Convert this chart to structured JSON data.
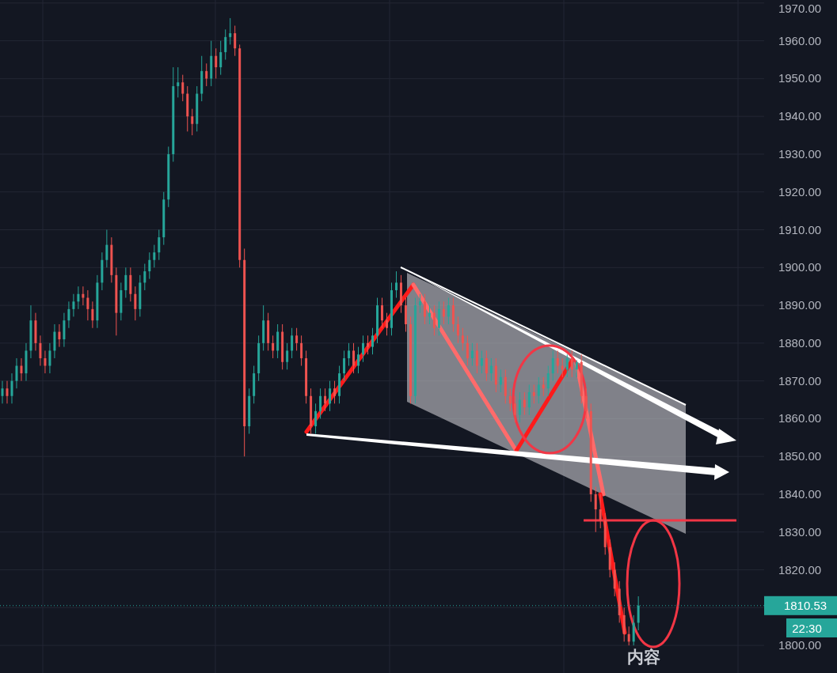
{
  "chart_data": {
    "type": "candlestick",
    "categories": [
      null,
      null,
      null,
      null,
      null,
      null,
      null,
      null,
      null,
      null,
      null,
      null,
      null,
      null,
      null,
      null,
      null,
      null,
      null,
      null,
      null,
      null,
      null,
      null,
      null,
      null,
      null,
      null,
      null,
      null,
      null,
      null,
      null,
      null,
      null,
      null,
      null,
      null,
      null,
      null,
      null,
      null,
      null,
      null,
      null,
      null,
      null,
      null,
      null,
      null,
      null,
      null,
      null,
      null,
      null,
      null,
      null,
      null,
      null,
      null,
      null,
      null,
      null,
      null,
      null,
      null,
      null,
      null,
      null,
      null,
      null,
      null,
      null,
      null,
      null,
      null,
      null,
      null,
      null,
      null,
      null,
      null,
      null,
      null,
      null,
      null,
      null,
      null,
      null,
      null,
      null,
      null,
      null,
      null,
      null,
      null,
      null,
      null,
      null,
      null,
      null,
      null,
      null,
      null,
      null,
      null,
      null,
      null,
      null,
      null,
      null,
      null,
      null,
      null,
      null,
      null,
      null,
      null,
      null,
      null,
      null,
      null,
      null,
      null,
      null,
      null,
      null,
      null,
      null,
      null,
      null,
      null,
      null,
      null,
      null,
      null,
      null,
      null,
      null,
      null,
      null,
      null,
      null,
      null,
      null,
      null,
      null,
      null,
      null,
      null,
      null,
      null,
      null,
      null,
      null,
      null,
      null,
      null,
      null,
      null,
      null
    ],
    "ohlc": [
      [
        1866,
        1870,
        1864,
        1868
      ],
      [
        1868,
        1870,
        1864,
        1866
      ],
      [
        1866,
        1872,
        1864,
        1870
      ],
      [
        1870,
        1876,
        1868,
        1874
      ],
      [
        1874,
        1876,
        1870,
        1872
      ],
      [
        1872,
        1880,
        1870,
        1878
      ],
      [
        1878,
        1890,
        1876,
        1886
      ],
      [
        1886,
        1888,
        1878,
        1880
      ],
      [
        1880,
        1882,
        1874,
        1876
      ],
      [
        1876,
        1878,
        1872,
        1874
      ],
      [
        1874,
        1880,
        1872,
        1878
      ],
      [
        1878,
        1885,
        1876,
        1883
      ],
      [
        1883,
        1885,
        1879,
        1881
      ],
      [
        1881,
        1888,
        1879,
        1886
      ],
      [
        1886,
        1891,
        1884,
        1889
      ],
      [
        1889,
        1893,
        1887,
        1891
      ],
      [
        1891,
        1895,
        1889,
        1893
      ],
      [
        1893,
        1895,
        1890,
        1892
      ],
      [
        1892,
        1894,
        1886,
        1889
      ],
      [
        1889,
        1891,
        1884,
        1886
      ],
      [
        1886,
        1898,
        1884,
        1896
      ],
      [
        1896,
        1904,
        1894,
        1902
      ],
      [
        1902,
        1910,
        1900,
        1906
      ],
      [
        1906,
        1908,
        1896,
        1898
      ],
      [
        1898,
        1900,
        1882,
        1888
      ],
      [
        1888,
        1896,
        1886,
        1894
      ],
      [
        1894,
        1900,
        1892,
        1898
      ],
      [
        1898,
        1900,
        1891,
        1893
      ],
      [
        1893,
        1895,
        1886,
        1889
      ],
      [
        1889,
        1898,
        1887,
        1896
      ],
      [
        1896,
        1901,
        1894,
        1899
      ],
      [
        1899,
        1904,
        1897,
        1902
      ],
      [
        1902,
        1906,
        1900,
        1904
      ],
      [
        1904,
        1910,
        1902,
        1908
      ],
      [
        1908,
        1920,
        1906,
        1918
      ],
      [
        1918,
        1932,
        1916,
        1930
      ],
      [
        1930,
        1953,
        1928,
        1948
      ],
      [
        1948,
        1953,
        1945,
        1949
      ],
      [
        1949,
        1951,
        1944,
        1946
      ],
      [
        1946,
        1948,
        1936,
        1940
      ],
      [
        1940,
        1942,
        1935,
        1938
      ],
      [
        1938,
        1948,
        1936,
        1946
      ],
      [
        1946,
        1956,
        1944,
        1952
      ],
      [
        1952,
        1954,
        1948,
        1950
      ],
      [
        1950,
        1960,
        1948,
        1956
      ],
      [
        1956,
        1958,
        1950,
        1953
      ],
      [
        1953,
        1960,
        1951,
        1957
      ],
      [
        1957,
        1963,
        1955,
        1961
      ],
      [
        1961,
        1966,
        1959,
        1962
      ],
      [
        1962,
        1964,
        1956,
        1958
      ],
      [
        1958,
        1959,
        1900,
        1902
      ],
      [
        1902,
        1905,
        1850,
        1858
      ],
      [
        1858,
        1868,
        1856,
        1866
      ],
      [
        1866,
        1874,
        1864,
        1872
      ],
      [
        1872,
        1882,
        1870,
        1880
      ],
      [
        1880,
        1890,
        1878,
        1886
      ],
      [
        1886,
        1888,
        1878,
        1880
      ],
      [
        1880,
        1882,
        1876,
        1878
      ],
      [
        1878,
        1885,
        1876,
        1883
      ],
      [
        1883,
        1885,
        1873,
        1875
      ],
      [
        1875,
        1880,
        1873,
        1878
      ],
      [
        1878,
        1884,
        1876,
        1882
      ],
      [
        1882,
        1884,
        1878,
        1880
      ],
      [
        1880,
        1882,
        1874,
        1876
      ],
      [
        1876,
        1878,
        1864,
        1866
      ],
      [
        1866,
        1868,
        1856,
        1858
      ],
      [
        1858,
        1864,
        1856,
        1862
      ],
      [
        1862,
        1868,
        1860,
        1866
      ],
      [
        1866,
        1868,
        1862,
        1864
      ],
      [
        1864,
        1870,
        1862,
        1868
      ],
      [
        1868,
        1870,
        1864,
        1866
      ],
      [
        1866,
        1874,
        1864,
        1872
      ],
      [
        1872,
        1878,
        1870,
        1876
      ],
      [
        1876,
        1880,
        1874,
        1878
      ],
      [
        1878,
        1880,
        1872,
        1874
      ],
      [
        1874,
        1879,
        1872,
        1877
      ],
      [
        1877,
        1882,
        1875,
        1880
      ],
      [
        1880,
        1882,
        1877,
        1879
      ],
      [
        1879,
        1884,
        1877,
        1882
      ],
      [
        1882,
        1892,
        1880,
        1890
      ],
      [
        1890,
        1892,
        1884,
        1886
      ],
      [
        1886,
        1888,
        1882,
        1884
      ],
      [
        1884,
        1896,
        1882,
        1894
      ],
      [
        1894,
        1899,
        1892,
        1896
      ],
      [
        1896,
        1898,
        1888,
        1890
      ],
      [
        1890,
        1892,
        1883,
        1885
      ],
      [
        1885,
        1887,
        1864,
        1866
      ],
      [
        1866,
        1892,
        1864,
        1890
      ],
      [
        1890,
        1893,
        1888,
        1891
      ],
      [
        1891,
        1893,
        1885,
        1887
      ],
      [
        1887,
        1890,
        1885,
        1888
      ],
      [
        1888,
        1890,
        1882,
        1884
      ],
      [
        1884,
        1891,
        1882,
        1889
      ],
      [
        1889,
        1891,
        1885,
        1887
      ],
      [
        1887,
        1892,
        1885,
        1890
      ],
      [
        1890,
        1892,
        1883,
        1885
      ],
      [
        1885,
        1887,
        1880,
        1882
      ],
      [
        1882,
        1884,
        1878,
        1880
      ],
      [
        1880,
        1882,
        1874,
        1876
      ],
      [
        1876,
        1880,
        1874,
        1878
      ],
      [
        1878,
        1880,
        1872,
        1874
      ],
      [
        1874,
        1878,
        1872,
        1876
      ],
      [
        1876,
        1878,
        1870,
        1872
      ],
      [
        1872,
        1876,
        1870,
        1874
      ],
      [
        1874,
        1876,
        1867,
        1869
      ],
      [
        1869,
        1873,
        1867,
        1871
      ],
      [
        1871,
        1873,
        1864,
        1866
      ],
      [
        1866,
        1868,
        1862,
        1864
      ],
      [
        1864,
        1866,
        1859,
        1861
      ],
      [
        1861,
        1867,
        1859,
        1865
      ],
      [
        1865,
        1867,
        1861,
        1863
      ],
      [
        1863,
        1869,
        1861,
        1867
      ],
      [
        1867,
        1869,
        1864,
        1866
      ],
      [
        1866,
        1871,
        1864,
        1869
      ],
      [
        1869,
        1871,
        1866,
        1868
      ],
      [
        1868,
        1874,
        1866,
        1872
      ],
      [
        1872,
        1878,
        1870,
        1876
      ],
      [
        1876,
        1878,
        1872,
        1874
      ],
      [
        1874,
        1876,
        1871,
        1873
      ],
      [
        1873,
        1877,
        1871,
        1876
      ],
      [
        1876,
        1878,
        1871,
        1873
      ],
      [
        1873,
        1875.5,
        1871,
        1875
      ],
      [
        1875,
        1877,
        1864,
        1866
      ],
      [
        1866,
        1868,
        1860,
        1862
      ],
      [
        1862,
        1864,
        1838,
        1840
      ],
      [
        1840,
        1842,
        1830,
        1836
      ],
      [
        1836,
        1840,
        1831,
        1833
      ],
      [
        1833,
        1835,
        1824,
        1826
      ],
      [
        1826,
        1828,
        1818,
        1820
      ],
      [
        1820,
        1822,
        1813,
        1815
      ],
      [
        1815,
        1817,
        1806,
        1808
      ],
      [
        1808,
        1810,
        1801,
        1803
      ],
      [
        1803,
        1805,
        1800,
        1801
      ],
      [
        1801,
        1808,
        1800,
        1806
      ],
      [
        1806,
        1813,
        1804,
        1810.53
      ],
      null,
      null,
      null,
      null,
      null,
      null,
      null,
      null,
      null,
      null,
      null,
      null,
      null,
      null,
      null,
      null,
      null,
      null,
      null,
      null,
      null,
      null,
      null,
      null,
      null,
      null
    ],
    "ylim": [
      1792.7,
      1970.8
    ],
    "yticks": [
      {
        "value": 1800,
        "label": "1800.00"
      },
      {
        "value": 1810,
        "label": null
      },
      {
        "value": 1820,
        "label": "1820.00"
      },
      {
        "value": 1830,
        "label": "1830.00"
      },
      {
        "value": 1840,
        "label": "1840.00"
      },
      {
        "value": 1850,
        "label": "1850.00"
      },
      {
        "value": 1860,
        "label": "1860.00"
      },
      {
        "value": 1870,
        "label": "1870.00"
      },
      {
        "value": 1880,
        "label": "1880.00"
      },
      {
        "value": 1890,
        "label": "1890.00"
      },
      {
        "value": 1900,
        "label": "1900.00"
      },
      {
        "value": 1910,
        "label": "1910.00"
      },
      {
        "value": 1920,
        "label": "1920.00"
      },
      {
        "value": 1930,
        "label": "1930.00"
      },
      {
        "value": 1940,
        "label": "1940.00"
      },
      {
        "value": 1950,
        "label": "1950.00"
      },
      {
        "value": 1960,
        "label": "1960.00"
      },
      {
        "value": 1970,
        "label": "1970.00"
      }
    ],
    "tick_labels": "y",
    "grid": true,
    "ref_lines": [
      {
        "axis": "y",
        "value": 1810.53,
        "label": "1810.53",
        "color": "#26a69a",
        "line_style": "dotted"
      }
    ],
    "annotations": [
      "22:30",
      "内容"
    ]
  }
}
